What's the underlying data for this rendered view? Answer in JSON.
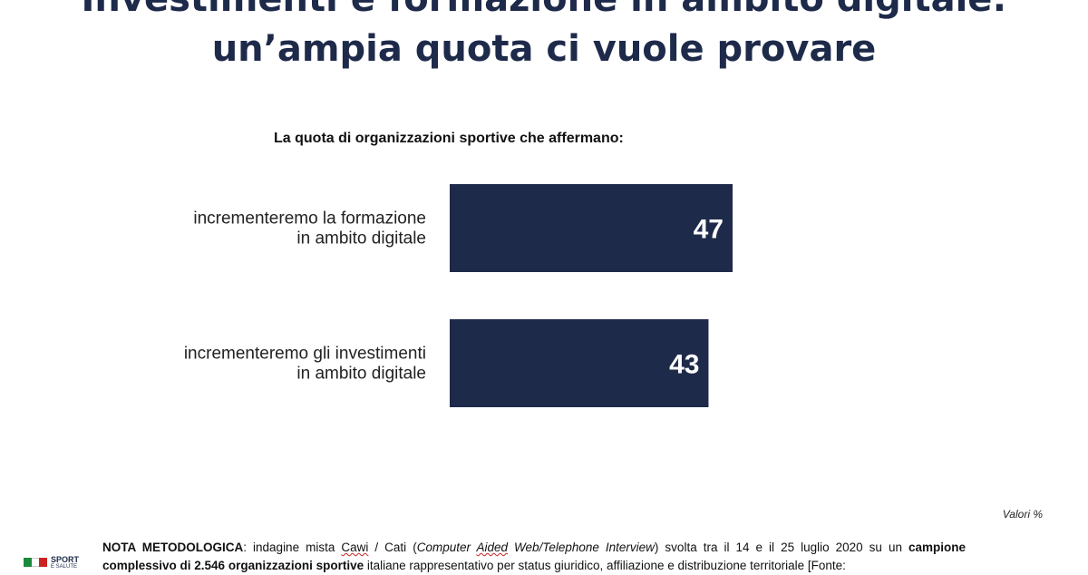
{
  "title": {
    "line1": "Investimenti e formazione in ambito digitale:",
    "line2": "un’ampia quota ci vuole provare"
  },
  "subtitle": "La quota di organizzazioni sportive che affermano:",
  "units_label": "Valori %",
  "logo": {
    "line1": "SPORT",
    "line2": "E SALUTE",
    "flag_text": "ITALIA"
  },
  "note": {
    "lead": "NOTA METODOLOGICA",
    "part1": ": indagine mista ",
    "cawi": "Cawi",
    "part2": " / Cati (",
    "italic1": "Computer ",
    "aided": "Aided",
    "italic2": " Web/Telephone Interview",
    "part3": ") svolta tra il 14 e il 25 luglio 2020 su un ",
    "bold2": "campione complessivo di 2.546 organizzazioni sportive",
    "part4": " italiane rappresentativo per status giuridico, affiliazione e distribuzione territoriale [Fonte:"
  },
  "colors": {
    "bar": "#1e2a4a",
    "title": "#1e2a4a"
  },
  "chart_data": {
    "type": "bar",
    "orientation": "horizontal",
    "categories": [
      [
        "incrementeremo la formazione",
        "in ambito digitale"
      ],
      [
        "incrementeremo gli investimenti",
        "in ambito digitale"
      ]
    ],
    "values": [
      47,
      43
    ],
    "data_labels": [
      "47",
      "43"
    ],
    "title": "La quota di organizzazioni sportive che affermano:",
    "units": "Valori %",
    "grid": false
  }
}
